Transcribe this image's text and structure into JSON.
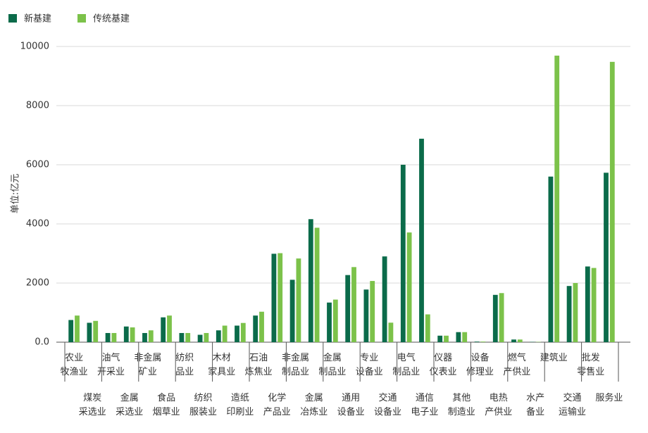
{
  "chart_data": {
    "type": "bar",
    "y_label": "单位:亿元",
    "categories": [
      [
        "农业",
        "牧渔业"
      ],
      [
        "煤炭",
        "采选业"
      ],
      [
        "油气",
        "开采业"
      ],
      [
        "金属",
        "采选业"
      ],
      [
        "非金属",
        "矿业"
      ],
      [
        "食品",
        "烟草业"
      ],
      [
        "纺织",
        "品业"
      ],
      [
        "纺织",
        "服装业"
      ],
      [
        "木材",
        "家具业"
      ],
      [
        "造纸",
        "印刷业"
      ],
      [
        "石油",
        "炼焦业"
      ],
      [
        "化学",
        "产品业"
      ],
      [
        "非金属",
        "制品业"
      ],
      [
        "金属",
        "冶炼业"
      ],
      [
        "金属",
        "制品业"
      ],
      [
        "通用",
        "设备业"
      ],
      [
        "专业",
        "设备业"
      ],
      [
        "交通",
        "设备业"
      ],
      [
        "电气",
        "制品业"
      ],
      [
        "通信",
        "电子业"
      ],
      [
        "仪器",
        "仪表业"
      ],
      [
        "其他",
        "制造业"
      ],
      [
        "设备",
        "修理业"
      ],
      [
        "电热",
        "产供业"
      ],
      [
        "燃气",
        "产供业"
      ],
      [
        "水产",
        "备业"
      ],
      [
        "建筑业"
      ],
      [
        "交通",
        "运输业"
      ],
      [
        "批发",
        "零售业"
      ],
      [
        "服务业"
      ]
    ],
    "series": [
      {
        "name": "新基建",
        "color": "#0b6b4a",
        "values": [
          750,
          656,
          310,
          530,
          310,
          840,
          310,
          250,
          400,
          560,
          900,
          2990,
          2110,
          4160,
          1340,
          2270,
          1780,
          2900,
          6000,
          6880,
          220,
          340,
          20,
          1600,
          90,
          10,
          5600,
          1900,
          2560,
          5730
        ]
      },
      {
        "name": "传统基建",
        "color": "#7cc24a",
        "values": [
          900,
          720,
          310,
          500,
          400,
          900,
          310,
          310,
          560,
          650,
          1030,
          3010,
          2830,
          3870,
          1440,
          2540,
          2070,
          660,
          3710,
          940,
          220,
          340,
          20,
          1660,
          90,
          10,
          9690,
          2000,
          2510,
          9480
        ]
      }
    ],
    "ylim": [
      0,
      10000
    ],
    "yticks": [
      {
        "value": 0,
        "label": "0.0"
      },
      2000,
      4000,
      6000,
      8000,
      10000
    ],
    "grid": true
  }
}
